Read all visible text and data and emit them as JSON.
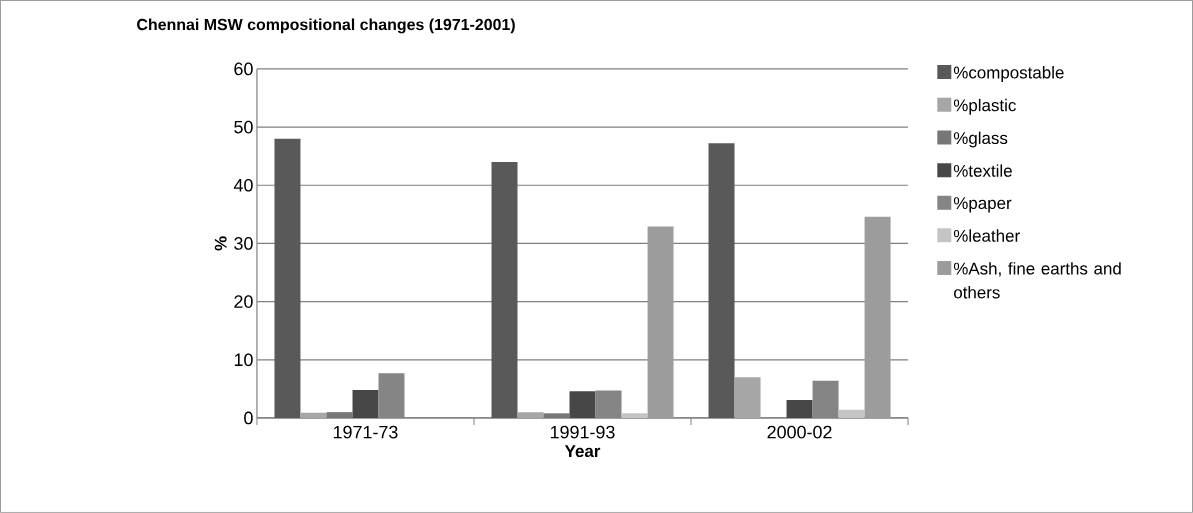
{
  "chart_data": {
    "type": "bar",
    "title": "Chennai MSW compositional changes (1971-2001)",
    "xlabel": "Year",
    "ylabel": "%",
    "categories": [
      "1971-73",
      "1991-93",
      "2000-02"
    ],
    "series": [
      {
        "name": "%compostable",
        "color": "#595959",
        "values": [
          48,
          44,
          47.2
        ]
      },
      {
        "name": "%plastic",
        "color": "#a6a6a6",
        "values": [
          0.9,
          1.0,
          7.0
        ]
      },
      {
        "name": "%glass",
        "color": "#777777",
        "values": [
          1.0,
          0.8,
          null
        ]
      },
      {
        "name": "%textile",
        "color": "#474747",
        "values": [
          4.8,
          4.6,
          3.1
        ]
      },
      {
        "name": "%paper",
        "color": "#858585",
        "values": [
          7.7,
          4.7,
          6.4
        ]
      },
      {
        "name": "%leather",
        "color": "#c4c4c4",
        "values": [
          null,
          0.8,
          1.4
        ]
      },
      {
        "name": "%Ash, fine earths and others",
        "color": "#9c9c9c",
        "values": [
          null,
          32.9,
          34.6
        ]
      }
    ],
    "ylim": [
      0,
      60
    ],
    "yticks": [
      0,
      10,
      20,
      30,
      40,
      50,
      60
    ],
    "grid": "y",
    "legend": "right"
  }
}
